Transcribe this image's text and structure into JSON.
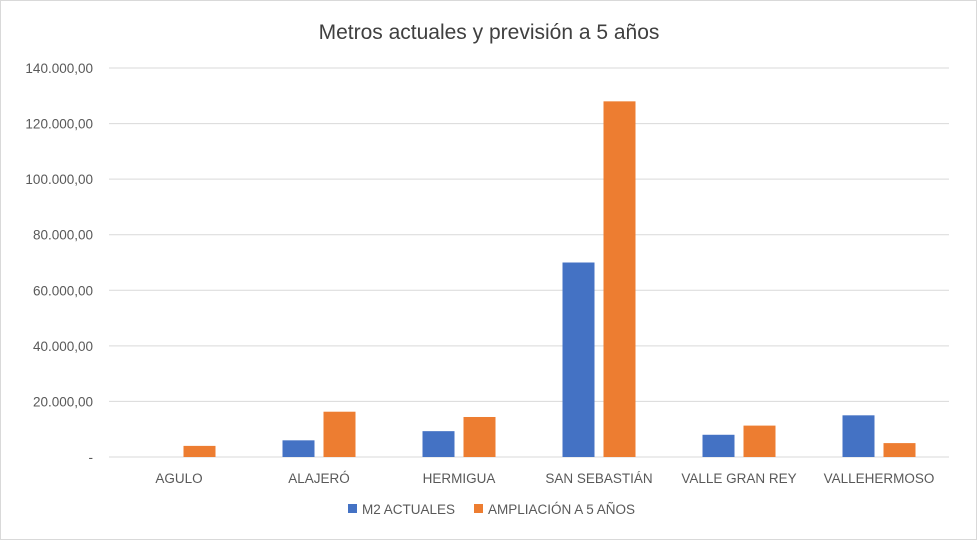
{
  "chart_data": {
    "type": "bar",
    "title": "Metros actuales y previsión a 5 años",
    "xlabel": "",
    "ylabel": "",
    "categories": [
      "AGULO",
      "ALAJERÓ",
      "HERMIGUA",
      "SAN SEBASTIÁN",
      "VALLE GRAN REY",
      "VALLEHERMOSO"
    ],
    "series": [
      {
        "name": "M2 ACTUALES",
        "color": "#4472c4",
        "values": [
          0,
          6000,
          9300,
          70000,
          8000,
          15000
        ]
      },
      {
        "name": "AMPLIACIÓN A 5 AÑOS",
        "color": "#ed7d31",
        "values": [
          4000,
          16300,
          14400,
          128000,
          11300,
          5000
        ]
      }
    ],
    "ylim": [
      0,
      140000
    ],
    "yticks": [
      0,
      20000,
      40000,
      60000,
      80000,
      100000,
      120000,
      140000
    ],
    "ytick_labels": [
      "-",
      "20.000,00",
      "40.000,00",
      "60.000,00",
      "80.000,00",
      "100.000,00",
      "120.000,00",
      "140.000,00"
    ],
    "grid": true,
    "legend_position": "bottom"
  }
}
